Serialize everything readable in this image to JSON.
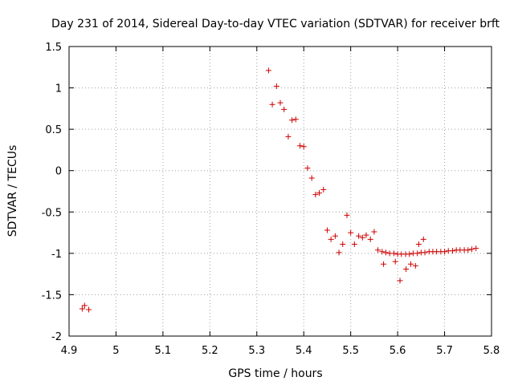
{
  "chart_data": {
    "type": "scatter",
    "title": "Day 231 of 2014, Sidereal Day-to-day VTEC variation (SDTVAR) for receiver brft",
    "xlabel": "GPS time / hours",
    "ylabel": "SDTVAR / TECUs",
    "xlim": [
      4.9,
      5.8
    ],
    "ylim": [
      -2,
      1.5
    ],
    "xticks": [
      "4.9",
      "5",
      "5.1",
      "5.2",
      "5.3",
      "5.4",
      "5.5",
      "5.6",
      "5.7",
      "5.8"
    ],
    "yticks": [
      "-2",
      "-1.5",
      "-1",
      "-0.5",
      "0",
      "0.5",
      "1",
      "1.5"
    ],
    "grid": true,
    "marker": "+",
    "color": "#cc0000",
    "series": [
      {
        "name": "SDTVAR",
        "x": [
          4.928,
          4.933,
          4.942,
          5.325,
          5.333,
          5.342,
          5.35,
          5.358,
          5.367,
          5.375,
          5.383,
          5.392,
          5.4,
          5.408,
          5.417,
          5.425,
          5.433,
          5.442,
          5.45,
          5.458,
          5.467,
          5.475,
          5.483,
          5.492,
          5.5,
          5.508,
          5.517,
          5.525,
          5.533,
          5.542,
          5.55,
          5.558,
          5.567,
          5.575,
          5.583,
          5.592,
          5.6,
          5.608,
          5.617,
          5.625,
          5.633,
          5.642,
          5.65,
          5.658,
          5.667,
          5.675,
          5.683,
          5.692,
          5.7,
          5.708,
          5.717,
          5.725,
          5.733,
          5.742,
          5.75,
          5.758,
          5.767,
          5.57,
          5.595,
          5.605,
          5.618,
          5.628,
          5.638,
          5.645,
          5.655
        ],
        "y": [
          -1.67,
          -1.63,
          -1.68,
          1.21,
          0.8,
          1.02,
          0.82,
          0.74,
          0.41,
          0.61,
          0.62,
          0.3,
          0.29,
          0.03,
          -0.09,
          -0.29,
          -0.27,
          -0.23,
          -0.72,
          -0.83,
          -0.79,
          -0.99,
          -0.89,
          -0.54,
          -0.75,
          -0.89,
          -0.79,
          -0.81,
          -0.78,
          -0.83,
          -0.74,
          -0.96,
          -0.98,
          -0.99,
          -1.0,
          -1.0,
          -1.01,
          -1.01,
          -1.01,
          -1.01,
          -1.0,
          -1.0,
          -0.99,
          -0.99,
          -0.98,
          -0.98,
          -0.98,
          -0.98,
          -0.98,
          -0.97,
          -0.97,
          -0.96,
          -0.96,
          -0.96,
          -0.96,
          -0.95,
          -0.94,
          -1.13,
          -1.1,
          -1.33,
          -1.19,
          -1.13,
          -1.15,
          -0.89,
          -0.83
        ]
      }
    ]
  }
}
